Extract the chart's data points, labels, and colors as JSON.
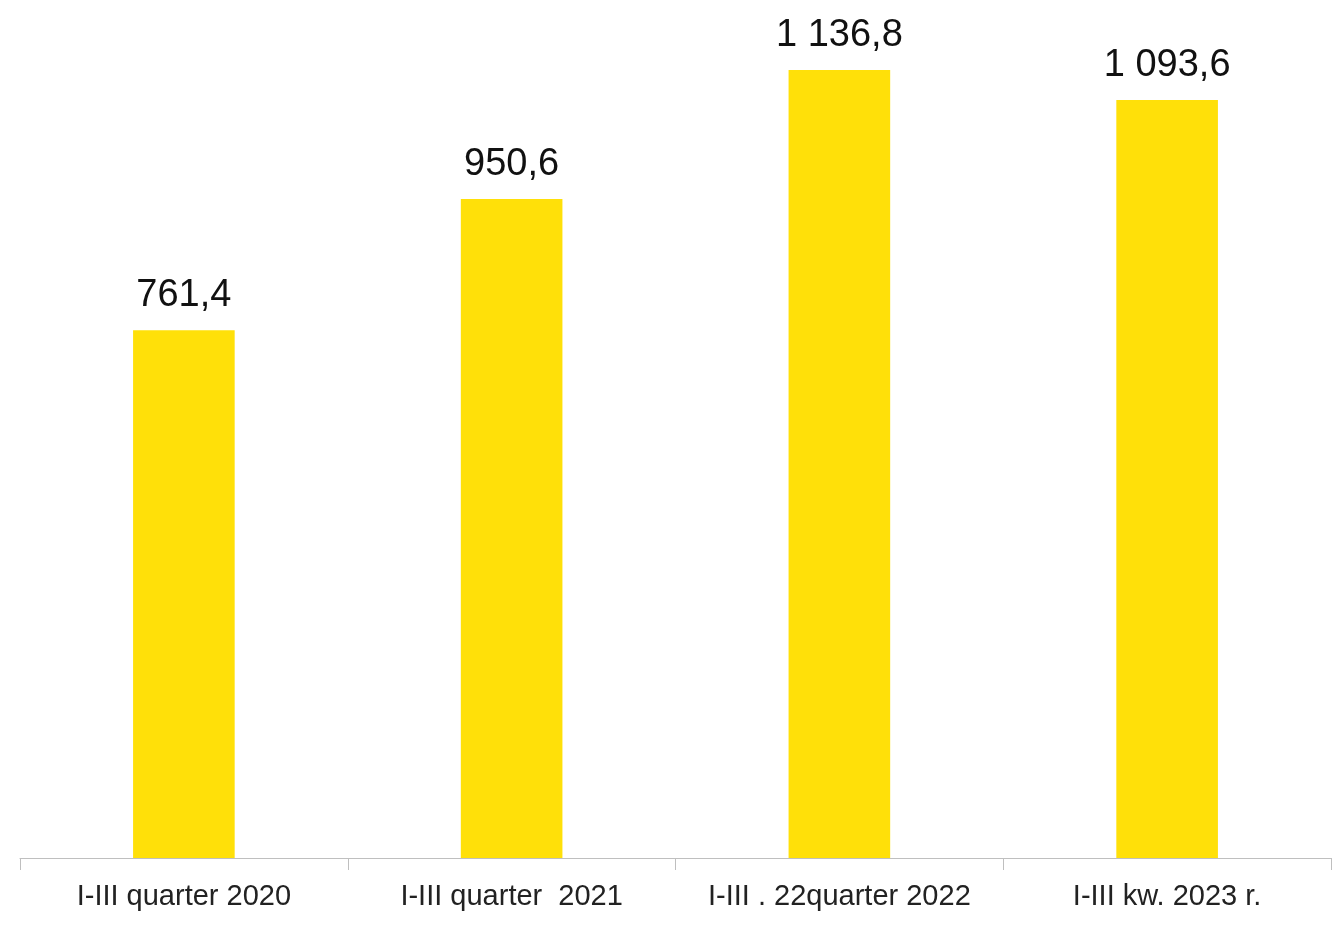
{
  "chart_data": {
    "type": "bar",
    "categories": [
      "I-III quarter 2020",
      "I-III quarter  2021",
      "I-III . 22quarter 2022",
      "I-III kw. 2023 r."
    ],
    "values": [
      761.4,
      950.6,
      1136.8,
      1093.6
    ],
    "value_labels": [
      "761,4",
      "950,6",
      "1 136,8",
      "1 093,6"
    ],
    "color": "#ffe009"
  }
}
